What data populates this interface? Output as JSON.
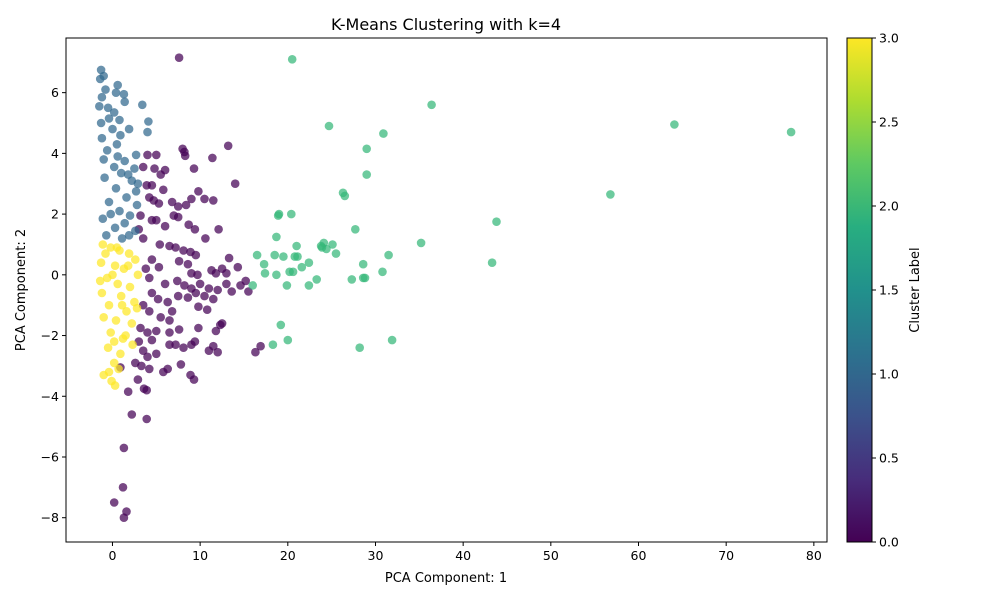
{
  "chart_data": {
    "type": "scatter",
    "title": "K-Means Clustering with k=4",
    "xlabel": "PCA Component: 1",
    "ylabel": "PCA Component: 2",
    "xlim": [
      -5.3,
      81.5
    ],
    "ylim": [
      -8.8,
      7.8
    ],
    "x_ticks": [
      0,
      10,
      20,
      30,
      40,
      50,
      60,
      70,
      80
    ],
    "y_ticks": [
      -8,
      -6,
      -4,
      -2,
      0,
      2,
      4,
      6
    ],
    "grid": false,
    "colorbar": {
      "label": "Cluster Label",
      "range": [
        0.0,
        3.0
      ],
      "ticks": [
        "0.0",
        "0.5",
        "1.0",
        "1.5",
        "2.0",
        "2.5",
        "3.0"
      ],
      "colormap": "viridis"
    },
    "series": [
      {
        "cluster": 0,
        "color": "#440154",
        "points": [
          [
            7.6,
            7.15
          ],
          [
            8.0,
            4.15
          ],
          [
            8.2,
            4.05
          ],
          [
            8.3,
            3.92
          ],
          [
            5.0,
            3.95
          ],
          [
            4.0,
            3.95
          ],
          [
            11.4,
            3.85
          ],
          [
            13.2,
            4.25
          ],
          [
            14.0,
            3.0
          ],
          [
            9.3,
            3.5
          ],
          [
            4.8,
            3.5
          ],
          [
            6.0,
            3.45
          ],
          [
            5.5,
            3.3
          ],
          [
            3.5,
            3.55
          ],
          [
            3.9,
            2.95
          ],
          [
            4.5,
            2.95
          ],
          [
            5.8,
            2.8
          ],
          [
            9.8,
            2.75
          ],
          [
            10.5,
            2.5
          ],
          [
            11.5,
            2.45
          ],
          [
            9.0,
            2.5
          ],
          [
            8.4,
            2.3
          ],
          [
            7.5,
            2.25
          ],
          [
            6.8,
            2.4
          ],
          [
            4.2,
            2.55
          ],
          [
            4.7,
            2.45
          ],
          [
            5.3,
            2.35
          ],
          [
            7.0,
            1.95
          ],
          [
            7.5,
            1.9
          ],
          [
            4.5,
            1.8
          ],
          [
            5.0,
            1.8
          ],
          [
            3.2,
            1.95
          ],
          [
            6.0,
            1.6
          ],
          [
            8.7,
            1.65
          ],
          [
            9.4,
            1.5
          ],
          [
            12.1,
            1.5
          ],
          [
            10.6,
            1.2
          ],
          [
            3.0,
            1.5
          ],
          [
            3.5,
            1.2
          ],
          [
            5.4,
            1.0
          ],
          [
            6.5,
            0.95
          ],
          [
            7.2,
            0.9
          ],
          [
            8.1,
            0.8
          ],
          [
            8.9,
            0.75
          ],
          [
            9.5,
            0.65
          ],
          [
            13.3,
            0.55
          ],
          [
            4.5,
            0.5
          ],
          [
            7.6,
            0.45
          ],
          [
            8.6,
            0.35
          ],
          [
            3.8,
            0.2
          ],
          [
            5.3,
            0.25
          ],
          [
            11.3,
            0.15
          ],
          [
            11.8,
            0.05
          ],
          [
            12.5,
            0.2
          ],
          [
            13.0,
            0.05
          ],
          [
            14.3,
            0.25
          ],
          [
            9.0,
            0.05
          ],
          [
            9.7,
            0.0
          ],
          [
            4.2,
            -0.1
          ],
          [
            6.0,
            -0.3
          ],
          [
            7.4,
            -0.2
          ],
          [
            8.2,
            -0.35
          ],
          [
            9.0,
            -0.45
          ],
          [
            10.0,
            -0.3
          ],
          [
            11.0,
            -0.45
          ],
          [
            12.0,
            -0.5
          ],
          [
            13.0,
            -0.3
          ],
          [
            13.6,
            -0.55
          ],
          [
            14.6,
            -0.35
          ],
          [
            15.2,
            -0.2
          ],
          [
            15.5,
            -0.55
          ],
          [
            4.5,
            -0.6
          ],
          [
            5.2,
            -0.8
          ],
          [
            6.3,
            -0.9
          ],
          [
            7.5,
            -0.7
          ],
          [
            8.6,
            -0.75
          ],
          [
            9.5,
            -0.6
          ],
          [
            10.5,
            -0.7
          ],
          [
            11.5,
            -0.8
          ],
          [
            10.8,
            -1.15
          ],
          [
            9.8,
            -1.05
          ],
          [
            3.5,
            -1.0
          ],
          [
            4.2,
            -1.2
          ],
          [
            6.8,
            -1.2
          ],
          [
            5.5,
            -1.4
          ],
          [
            6.5,
            -1.5
          ],
          [
            7.6,
            -1.8
          ],
          [
            3.2,
            -1.75
          ],
          [
            4.0,
            -1.9
          ],
          [
            5.0,
            -1.85
          ],
          [
            6.5,
            -1.9
          ],
          [
            9.8,
            -1.75
          ],
          [
            11.8,
            -1.85
          ],
          [
            12.3,
            -1.65
          ],
          [
            12.5,
            -1.6
          ],
          [
            3.0,
            -2.2
          ],
          [
            4.5,
            -2.15
          ],
          [
            6.5,
            -2.3
          ],
          [
            7.2,
            -2.3
          ],
          [
            8.1,
            -2.4
          ],
          [
            9.0,
            -2.3
          ],
          [
            9.4,
            -2.2
          ],
          [
            11.5,
            -2.35
          ],
          [
            11.0,
            -2.5
          ],
          [
            12.0,
            -2.55
          ],
          [
            3.5,
            -2.5
          ],
          [
            4.0,
            -2.7
          ],
          [
            5.0,
            -2.6
          ],
          [
            2.6,
            -2.9
          ],
          [
            3.3,
            -3.0
          ],
          [
            4.2,
            -3.1
          ],
          [
            6.3,
            -3.1
          ],
          [
            5.8,
            -3.2
          ],
          [
            7.8,
            -2.95
          ],
          [
            8.9,
            -3.3
          ],
          [
            9.3,
            -3.45
          ],
          [
            16.3,
            -2.55
          ],
          [
            16.9,
            -2.35
          ],
          [
            0.9,
            -3.05
          ],
          [
            2.9,
            -3.45
          ],
          [
            3.6,
            -3.75
          ],
          [
            3.9,
            -3.8
          ],
          [
            1.8,
            -3.85
          ],
          [
            2.2,
            -4.6
          ],
          [
            3.9,
            -4.75
          ],
          [
            1.3,
            -5.7
          ],
          [
            1.2,
            -7.0
          ],
          [
            0.2,
            -7.5
          ],
          [
            1.6,
            -7.8
          ],
          [
            1.3,
            -8.0
          ]
        ]
      },
      {
        "cluster": 1,
        "color": "#31688e",
        "points": [
          [
            -1.3,
            6.75
          ],
          [
            -1.0,
            6.55
          ],
          [
            -1.4,
            6.45
          ],
          [
            0.6,
            6.25
          ],
          [
            -0.8,
            6.1
          ],
          [
            0.4,
            6.0
          ],
          [
            1.3,
            5.95
          ],
          [
            -1.2,
            5.85
          ],
          [
            1.4,
            5.7
          ],
          [
            3.4,
            5.6
          ],
          [
            -1.5,
            5.55
          ],
          [
            0.2,
            5.35
          ],
          [
            -0.4,
            5.15
          ],
          [
            0.8,
            5.1
          ],
          [
            4.1,
            5.05
          ],
          [
            1.9,
            4.8
          ],
          [
            4.0,
            4.7
          ],
          [
            -1.2,
            4.5
          ],
          [
            0.5,
            4.3
          ],
          [
            -0.6,
            4.1
          ],
          [
            2.7,
            3.95
          ],
          [
            1.4,
            3.75
          ],
          [
            0.2,
            3.55
          ],
          [
            2.5,
            3.5
          ],
          [
            1.0,
            3.35
          ],
          [
            -0.9,
            3.2
          ],
          [
            2.2,
            3.1
          ],
          [
            0.4,
            2.85
          ],
          [
            2.7,
            2.75
          ],
          [
            1.6,
            2.55
          ],
          [
            -0.4,
            2.4
          ],
          [
            2.8,
            2.3
          ],
          [
            0.8,
            2.1
          ],
          [
            2.0,
            1.95
          ],
          [
            -1.1,
            1.85
          ],
          [
            1.4,
            1.7
          ],
          [
            0.3,
            1.55
          ],
          [
            2.6,
            1.45
          ],
          [
            -0.7,
            1.3
          ],
          [
            1.1,
            1.2
          ],
          [
            -1.3,
            5.0
          ],
          [
            -0.5,
            5.5
          ],
          [
            0.0,
            4.8
          ],
          [
            0.9,
            4.6
          ],
          [
            -1.0,
            3.8
          ],
          [
            1.8,
            3.3
          ],
          [
            2.9,
            3.0
          ],
          [
            -0.2,
            2.0
          ],
          [
            1.9,
            1.3
          ],
          [
            0.6,
            3.9
          ]
        ]
      },
      {
        "cluster": 2,
        "color": "#35b779",
        "points": [
          [
            20.5,
            7.1
          ],
          [
            36.4,
            5.6
          ],
          [
            24.7,
            4.9
          ],
          [
            64.1,
            4.95
          ],
          [
            77.4,
            4.7
          ],
          [
            30.9,
            4.65
          ],
          [
            29.0,
            4.15
          ],
          [
            29.0,
            3.3
          ],
          [
            26.3,
            2.7
          ],
          [
            26.5,
            2.6
          ],
          [
            56.8,
            2.65
          ],
          [
            18.9,
            1.95
          ],
          [
            19.0,
            2.0
          ],
          [
            20.4,
            2.0
          ],
          [
            43.8,
            1.75
          ],
          [
            27.7,
            1.5
          ],
          [
            18.7,
            1.25
          ],
          [
            35.2,
            1.05
          ],
          [
            21.0,
            0.95
          ],
          [
            23.8,
            0.95
          ],
          [
            24.1,
            1.05
          ],
          [
            25.1,
            1.0
          ],
          [
            23.9,
            0.9
          ],
          [
            24.4,
            0.85
          ],
          [
            16.5,
            0.65
          ],
          [
            18.5,
            0.65
          ],
          [
            19.5,
            0.6
          ],
          [
            20.8,
            0.6
          ],
          [
            21.1,
            0.6
          ],
          [
            25.5,
            0.7
          ],
          [
            31.5,
            0.65
          ],
          [
            17.3,
            0.35
          ],
          [
            22.4,
            0.4
          ],
          [
            28.6,
            0.35
          ],
          [
            43.3,
            0.4
          ],
          [
            17.4,
            0.05
          ],
          [
            18.7,
            0.0
          ],
          [
            20.2,
            0.1
          ],
          [
            20.6,
            0.1
          ],
          [
            21.6,
            0.25
          ],
          [
            30.8,
            0.1
          ],
          [
            27.3,
            -0.15
          ],
          [
            28.6,
            -0.1
          ],
          [
            28.8,
            -0.1
          ],
          [
            23.3,
            -0.15
          ],
          [
            22.4,
            -0.35
          ],
          [
            19.9,
            -0.35
          ],
          [
            16.0,
            -0.35
          ],
          [
            19.2,
            -1.65
          ],
          [
            31.9,
            -2.15
          ],
          [
            20.0,
            -2.15
          ],
          [
            18.3,
            -2.3
          ],
          [
            28.2,
            -2.4
          ]
        ]
      },
      {
        "cluster": 3,
        "color": "#fde725",
        "points": [
          [
            -1.1,
            1.0
          ],
          [
            -0.2,
            0.9
          ],
          [
            0.8,
            0.8
          ],
          [
            1.9,
            0.7
          ],
          [
            2.6,
            0.5
          ],
          [
            -1.3,
            0.4
          ],
          [
            0.3,
            0.3
          ],
          [
            1.3,
            0.2
          ],
          [
            2.9,
            0.0
          ],
          [
            -0.6,
            -0.1
          ],
          [
            0.6,
            -0.3
          ],
          [
            2.0,
            -0.4
          ],
          [
            -1.2,
            -0.6
          ],
          [
            1.0,
            -0.7
          ],
          [
            2.5,
            -0.9
          ],
          [
            -0.4,
            -1.0
          ],
          [
            1.6,
            -1.2
          ],
          [
            -1.0,
            -1.4
          ],
          [
            0.4,
            -1.5
          ],
          [
            2.2,
            -1.6
          ],
          [
            -0.2,
            -1.9
          ],
          [
            1.2,
            -2.1
          ],
          [
            -0.5,
            -2.4
          ],
          [
            0.9,
            -2.6
          ],
          [
            0.2,
            -2.9
          ],
          [
            -0.4,
            -3.2
          ],
          [
            0.7,
            -3.1
          ],
          [
            -0.1,
            -3.5
          ],
          [
            0.3,
            -3.65
          ],
          [
            -1.0,
            -3.3
          ],
          [
            1.5,
            -2.0
          ],
          [
            2.8,
            -1.1
          ],
          [
            -0.8,
            0.7
          ],
          [
            0.0,
            0.0
          ],
          [
            1.1,
            -1.0
          ],
          [
            0.5,
            0.9
          ],
          [
            -1.4,
            -0.2
          ],
          [
            1.8,
            0.3
          ],
          [
            0.2,
            -2.2
          ],
          [
            2.3,
            -2.3
          ]
        ]
      }
    ]
  }
}
